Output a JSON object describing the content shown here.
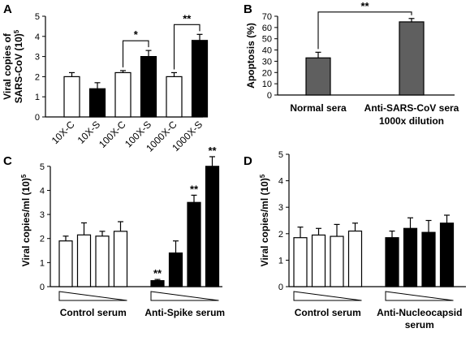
{
  "colors": {
    "white_bar": "#ffffff",
    "black_bar": "#000000",
    "gray_bar": "#5f5f5f",
    "stroke": "#000000"
  },
  "chart_data": [
    {
      "panel": "A",
      "type": "bar",
      "ylabel": "Viral copies of SARS-CoV (10)5",
      "ylabel_lines": [
        "Viral copies of",
        "SARS-CoV (10)5"
      ],
      "ylim": [
        0,
        5
      ],
      "yticks": [
        0,
        1,
        2,
        3,
        4,
        5
      ],
      "categories": [
        "10X-C",
        "10X-S",
        "100X-C",
        "100X-S",
        "1000X-C",
        "1000X-S"
      ],
      "values": [
        2.0,
        1.4,
        2.2,
        3.0,
        2.0,
        3.8
      ],
      "errors": [
        0.2,
        0.3,
        0.1,
        0.3,
        0.2,
        0.3
      ],
      "fills": [
        "white",
        "black",
        "white",
        "black",
        "white",
        "black"
      ],
      "significance": [
        {
          "from": 2,
          "to": 3,
          "label": "*"
        },
        {
          "from": 4,
          "to": 5,
          "label": "**"
        }
      ]
    },
    {
      "panel": "B",
      "type": "bar",
      "ylabel": "Apoptosis (%)",
      "ylim": [
        0,
        70
      ],
      "yticks": [
        0,
        10,
        20,
        30,
        40,
        50,
        60,
        70
      ],
      "categories": [
        "Normal sera",
        "Anti-SARS-CoV sera"
      ],
      "category_sublabels": [
        "",
        "1000x dilution"
      ],
      "values": [
        33,
        65
      ],
      "errors": [
        5,
        3
      ],
      "fills": [
        "gray",
        "gray"
      ],
      "significance": [
        {
          "from": 0,
          "to": 1,
          "label": "**"
        }
      ]
    },
    {
      "panel": "C",
      "type": "bar",
      "ylabel": "Viral copies/ml (10)5",
      "ylim": [
        0,
        5.5
      ],
      "yticks": [
        0,
        1,
        2,
        3,
        4,
        5
      ],
      "groups": [
        {
          "label": "Control serum",
          "label_lines": [
            "Control serum"
          ],
          "fill": "white",
          "values": [
            1.9,
            2.15,
            2.1,
            2.3
          ],
          "errors": [
            0.2,
            0.5,
            0.2,
            0.4
          ],
          "stars": [
            "",
            "",
            "",
            ""
          ]
        },
        {
          "label": "Anti-Spike serum",
          "label_lines": [
            "Anti-Spike serum"
          ],
          "fill": "black",
          "values": [
            0.25,
            1.4,
            3.5,
            5.0
          ],
          "errors": [
            0.05,
            0.5,
            0.3,
            0.4
          ],
          "stars": [
            "**",
            "",
            "**",
            "**"
          ]
        }
      ]
    },
    {
      "panel": "D",
      "type": "bar",
      "ylabel": "Viral copies/ml (10)5",
      "ylim": [
        0,
        5
      ],
      "yticks": [
        0,
        1,
        2,
        3,
        4,
        5
      ],
      "groups": [
        {
          "label": "Control serum",
          "label_lines": [
            "Control serum"
          ],
          "fill": "white",
          "values": [
            1.85,
            1.95,
            1.9,
            2.1
          ],
          "errors": [
            0.4,
            0.25,
            0.45,
            0.3
          ],
          "stars": [
            "",
            "",
            "",
            ""
          ]
        },
        {
          "label": "Anti-Nucleocapsid serum",
          "label_lines": [
            "Anti-Nucleocapsid",
            "serum"
          ],
          "fill": "black",
          "values": [
            1.85,
            2.2,
            2.05,
            2.4
          ],
          "errors": [
            0.25,
            0.4,
            0.45,
            0.3
          ],
          "stars": [
            "",
            "",
            "",
            ""
          ]
        }
      ]
    }
  ]
}
